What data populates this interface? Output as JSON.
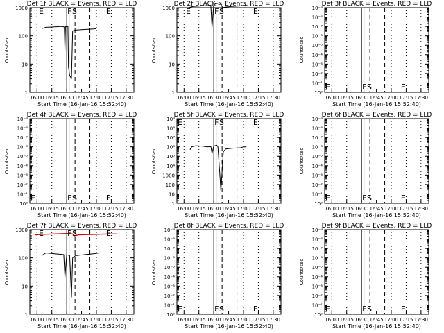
{
  "chart_data": [
    {
      "type": "line",
      "panel_title": "Det 1f BLACK = Events, RED = LLD",
      "xlabel": "Start Time (16-Jan-16 15:52:40)",
      "ylabel": "Counts/sec",
      "yticks": [
        "1",
        "10",
        "100",
        "1000"
      ],
      "x_ticks": [
        "16:00",
        "16:15",
        "16:30",
        "16:45",
        "17:00",
        "17:15",
        "17:30"
      ],
      "flags": [
        {
          "t": 16.02,
          "text": "E"
        },
        {
          "t": 16.5,
          "text": "F"
        },
        {
          "t": 16.58,
          "text": "S"
        },
        {
          "t": 17.15,
          "text": "E"
        }
      ],
      "series": [
        {
          "name": "Events",
          "color": "#000000",
          "points": [
            [
              16.08,
              180
            ],
            [
              16.15,
              200
            ],
            [
              16.25,
              205
            ],
            [
              16.33,
              210
            ],
            [
              16.42,
              215
            ],
            [
              16.46,
              205
            ],
            [
              16.47,
              30
            ],
            [
              16.48,
              210
            ],
            [
              16.52,
              215
            ],
            [
              16.53,
              8
            ],
            [
              16.55,
              4
            ],
            [
              16.58,
              3
            ],
            [
              16.6,
              150
            ],
            [
              16.65,
              160
            ],
            [
              16.75,
              165
            ],
            [
              16.85,
              170
            ],
            [
              16.95,
              175
            ],
            [
              17.0,
              180
            ]
          ]
        }
      ]
    },
    {
      "type": "line",
      "panel_title": "Det 2f BLACK = Events, RED = LLD",
      "xlabel": "Start Time (16-Jan-16 15:52:40)",
      "ylabel": "Counts/sec",
      "yticks": [
        "1",
        "10",
        "100",
        "1000"
      ],
      "x_ticks": [
        "16:00",
        "16:15",
        "16:30",
        "16:45",
        "17:00",
        "17:15",
        "17:30"
      ],
      "flags": [
        {
          "t": 16.02,
          "text": "E"
        },
        {
          "t": 16.5,
          "text": "F"
        },
        {
          "t": 16.58,
          "text": "S"
        },
        {
          "t": 17.15,
          "text": "E"
        }
      ],
      "series": [
        {
          "name": "Events",
          "color": "#000000",
          "points": [
            [
              16.08,
              1000
            ],
            [
              16.15,
              1100
            ],
            [
              16.3,
              1150
            ],
            [
              16.45,
              1200
            ],
            [
              16.47,
              200
            ],
            [
              16.5,
              1300
            ],
            [
              16.55,
              1400
            ],
            [
              16.6,
              1500
            ],
            [
              16.62,
              1300
            ],
            [
              16.65,
              1000
            ],
            [
              16.7,
              1050
            ],
            [
              16.8,
              1100
            ],
            [
              16.95,
              1150
            ],
            [
              17.05,
              1200
            ]
          ]
        },
        {
          "name": "LLD",
          "color": "#cc0000",
          "points": [
            [
              15.96,
              4500
            ],
            [
              16.1,
              4500
            ],
            [
              16.3,
              4600
            ],
            [
              16.45,
              4700
            ],
            [
              16.55,
              4800
            ],
            [
              16.6,
              4000
            ],
            [
              16.66,
              2000
            ],
            [
              16.72,
              4000
            ],
            [
              16.8,
              4500
            ],
            [
              17.0,
              4600
            ],
            [
              17.25,
              4700
            ],
            [
              17.35,
              4700
            ]
          ]
        }
      ]
    },
    {
      "type": "line",
      "panel_title": "Det 3f BLACK = Events, RED = LLD",
      "xlabel": "Start Time (16-Jan-16 15:52:40)",
      "ylabel": "Counts/sec",
      "yticks": [
        "10⁰",
        "10⁻¹",
        "10⁻²",
        "10⁻³",
        "10⁻⁴",
        "10⁻⁵",
        "10⁻⁶",
        "10⁻⁷",
        "10⁻⁸",
        "10⁻⁹"
      ],
      "x_ticks": [
        "16:00",
        "16:15",
        "16:30",
        "16:45",
        "17:00",
        "17:15",
        "17:30"
      ],
      "flags": [
        {
          "t": 15.88,
          "text": "E"
        },
        {
          "t": 16.5,
          "text": "F"
        },
        {
          "t": 16.58,
          "text": "S"
        },
        {
          "t": 17.15,
          "text": "E"
        }
      ],
      "series": []
    },
    {
      "type": "line",
      "panel_title": "Det 4f BLACK = Events, RED = LLD",
      "xlabel": "Start Time (16-Jan-16 15:52:40)",
      "ylabel": "Counts/sec",
      "yticks": [
        "10⁰",
        "10⁻¹",
        "10⁻²",
        "10⁻³",
        "10⁻⁴",
        "10⁻⁵",
        "10⁻⁶",
        "10⁻⁷",
        "10⁻⁸",
        "10⁻⁹"
      ],
      "x_ticks": [
        "16:00",
        "16:15",
        "16:30",
        "16:45",
        "17:00",
        "17:15",
        "17:30"
      ],
      "flags": [
        {
          "t": 15.88,
          "text": "E"
        },
        {
          "t": 16.5,
          "text": "F"
        },
        {
          "t": 16.58,
          "text": "S"
        },
        {
          "t": 17.15,
          "text": "E"
        }
      ],
      "series": []
    },
    {
      "type": "line",
      "panel_title": "Det 5f BLACK = Events, RED = LLD",
      "xlabel": "Start Time (16-Jan-16 15:52:40)",
      "ylabel": "Counts/sec",
      "yticks": [
        "1",
        "10",
        "100",
        "1000",
        "10⁴",
        "10⁵",
        "10⁶",
        "10⁷",
        "10⁸",
        "10⁹"
      ],
      "x_ticks": [
        "16:00",
        "16:15",
        "16:30",
        "16:45",
        "17:00",
        "17:15",
        "17:30"
      ],
      "flags": [
        {
          "t": 15.88,
          "text": "E"
        },
        {
          "t": 16.5,
          "text": "F"
        },
        {
          "t": 16.58,
          "text": "S"
        },
        {
          "t": 17.15,
          "text": "E"
        }
      ],
      "series": [
        {
          "name": "Events",
          "color": "#000000",
          "points": [
            [
              16.1,
              500000.0
            ],
            [
              16.13,
              1000000.0
            ],
            [
              16.2,
              1300000.0
            ],
            [
              16.3,
              1200000.0
            ],
            [
              16.4,
              1000000.0
            ],
            [
              16.45,
              1100000.0
            ],
            [
              16.47,
              200000.0
            ],
            [
              16.5,
              1200000.0
            ],
            [
              16.55,
              1500000.0
            ],
            [
              16.57,
              1000000.0
            ],
            [
              16.6,
              2000.0
            ],
            [
              16.62,
              20
            ],
            [
              16.66,
              300000.0
            ],
            [
              16.7,
              600000.0
            ],
            [
              16.8,
              700000.0
            ],
            [
              16.95,
              800000.0
            ],
            [
              17.0,
              1000000.0
            ],
            [
              17.05,
              1000000.0
            ]
          ]
        }
      ]
    },
    {
      "type": "line",
      "panel_title": "Det 6f BLACK = Events, RED = LLD",
      "xlabel": "Start Time (16-Jan-16 15:52:40)",
      "ylabel": "Counts/sec",
      "yticks": [
        "10⁰",
        "10⁻¹",
        "10⁻²",
        "10⁻³",
        "10⁻⁴",
        "10⁻⁵",
        "10⁻⁶",
        "10⁻⁷",
        "10⁻⁸",
        "10⁻⁹"
      ],
      "x_ticks": [
        "16:00",
        "16:15",
        "16:30",
        "16:45",
        "17:00",
        "17:15",
        "17:30"
      ],
      "flags": [
        {
          "t": 15.88,
          "text": "E"
        },
        {
          "t": 16.5,
          "text": "F"
        },
        {
          "t": 16.58,
          "text": "S"
        },
        {
          "t": 17.15,
          "text": "E"
        }
      ],
      "series": []
    },
    {
      "type": "line",
      "panel_title": "Det 7f BLACK = Events, RED = LLD",
      "xlabel": "Start Time (16-Jan-16 15:52:40)",
      "ylabel": "Counts/sec",
      "yticks": [
        "1",
        "10",
        "100",
        "1000"
      ],
      "x_ticks": [
        "16:00",
        "16:15",
        "16:30",
        "16:45",
        "17:00",
        "17:15",
        "17:30"
      ],
      "flags": [
        {
          "t": 16.02,
          "text": "E"
        },
        {
          "t": 16.5,
          "text": "F"
        },
        {
          "t": 16.58,
          "text": "S"
        },
        {
          "t": 17.15,
          "text": "E"
        }
      ],
      "series": [
        {
          "name": "Events",
          "color": "#000000",
          "points": [
            [
              16.08,
              120
            ],
            [
              16.15,
              150
            ],
            [
              16.3,
              140
            ],
            [
              16.45,
              130
            ],
            [
              16.47,
              20
            ],
            [
              16.5,
              130
            ],
            [
              16.55,
              120
            ],
            [
              16.58,
              4
            ],
            [
              16.6,
              100
            ],
            [
              16.65,
              120
            ],
            [
              16.8,
              130
            ],
            [
              16.95,
              140
            ],
            [
              17.05,
              150
            ]
          ]
        },
        {
          "name": "LLD",
          "color": "#cc0000",
          "points": [
            [
              15.96,
              650
            ],
            [
              16.1,
              680
            ],
            [
              16.3,
              700
            ],
            [
              16.45,
              720
            ],
            [
              16.55,
              730
            ],
            [
              16.6,
              700
            ],
            [
              16.63,
              600
            ],
            [
              16.7,
              650
            ],
            [
              17.0,
              680
            ],
            [
              17.2,
              700
            ],
            [
              17.35,
              700
            ]
          ]
        }
      ]
    },
    {
      "type": "line",
      "panel_title": "Det 8f BLACK = Events, RED = LLD",
      "xlabel": "Start Time (16-Jan-16 15:52:40)",
      "ylabel": "Counts/sec",
      "yticks": [
        "10⁰",
        "10⁻¹",
        "10⁻²",
        "10⁻³",
        "10⁻⁴",
        "10⁻⁵",
        "10⁻⁶",
        "10⁻⁷",
        "10⁻⁸",
        "10⁻⁹"
      ],
      "x_ticks": [
        "16:00",
        "16:15",
        "16:30",
        "16:45",
        "17:00",
        "17:15",
        "17:30"
      ],
      "flags": [
        {
          "t": 15.88,
          "text": "E"
        },
        {
          "t": 16.5,
          "text": "F"
        },
        {
          "t": 16.58,
          "text": "S"
        },
        {
          "t": 17.15,
          "text": "E"
        }
      ],
      "series": []
    },
    {
      "type": "line",
      "panel_title": "Det 9f BLACK = Events, RED = LLD",
      "xlabel": "Start Time (16-Jan-16 15:52:40)",
      "ylabel": "Counts/sec",
      "yticks": [
        "10⁰",
        "10⁻¹",
        "10⁻²",
        "10⁻³",
        "10⁻⁴",
        "10⁻⁵",
        "10⁻⁶",
        "10⁻⁷",
        "10⁻⁸",
        "10⁻⁹"
      ],
      "x_ticks": [
        "16:00",
        "16:15",
        "16:30",
        "16:45",
        "17:00",
        "17:15",
        "17:30"
      ],
      "flags": [
        {
          "t": 15.88,
          "text": "E"
        },
        {
          "t": 16.5,
          "text": "F"
        },
        {
          "t": 16.58,
          "text": "S"
        },
        {
          "t": 17.15,
          "text": "E"
        }
      ],
      "series": []
    }
  ]
}
